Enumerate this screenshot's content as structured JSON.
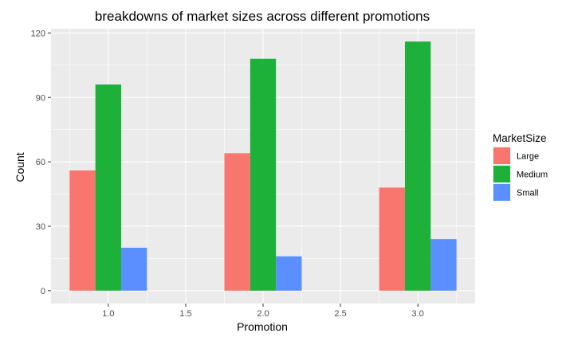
{
  "chart_data": {
    "type": "bar",
    "title": "breakdowns of market sizes across different promotions",
    "xlabel": "Promotion",
    "ylabel": "Count",
    "categories": [
      1,
      2,
      3
    ],
    "series": [
      {
        "name": "Large",
        "values": [
          56,
          64,
          48
        ],
        "color": "#F8766D"
      },
      {
        "name": "Medium",
        "values": [
          96,
          108,
          116
        ],
        "color": "#1EB139"
      },
      {
        "name": "Small",
        "values": [
          20,
          16,
          24
        ],
        "color": "#5B8FFF"
      }
    ],
    "xlim": [
      0.63,
      3.37
    ],
    "ylim": [
      -6,
      122
    ],
    "x_ticks": [
      1.0,
      1.5,
      2.0,
      2.5,
      3.0
    ],
    "x_tick_labels": [
      "1.0",
      "1.5",
      "2.0",
      "2.5",
      "3.0"
    ],
    "y_ticks": [
      0,
      30,
      60,
      90,
      120
    ],
    "y_tick_labels": [
      "0",
      "30",
      "60",
      "90",
      "120"
    ],
    "legend": {
      "title": "MarketSize",
      "position": "right"
    },
    "grid": true,
    "panel_background": "#EBEBEB",
    "grid_color": "#FFFFFF"
  }
}
